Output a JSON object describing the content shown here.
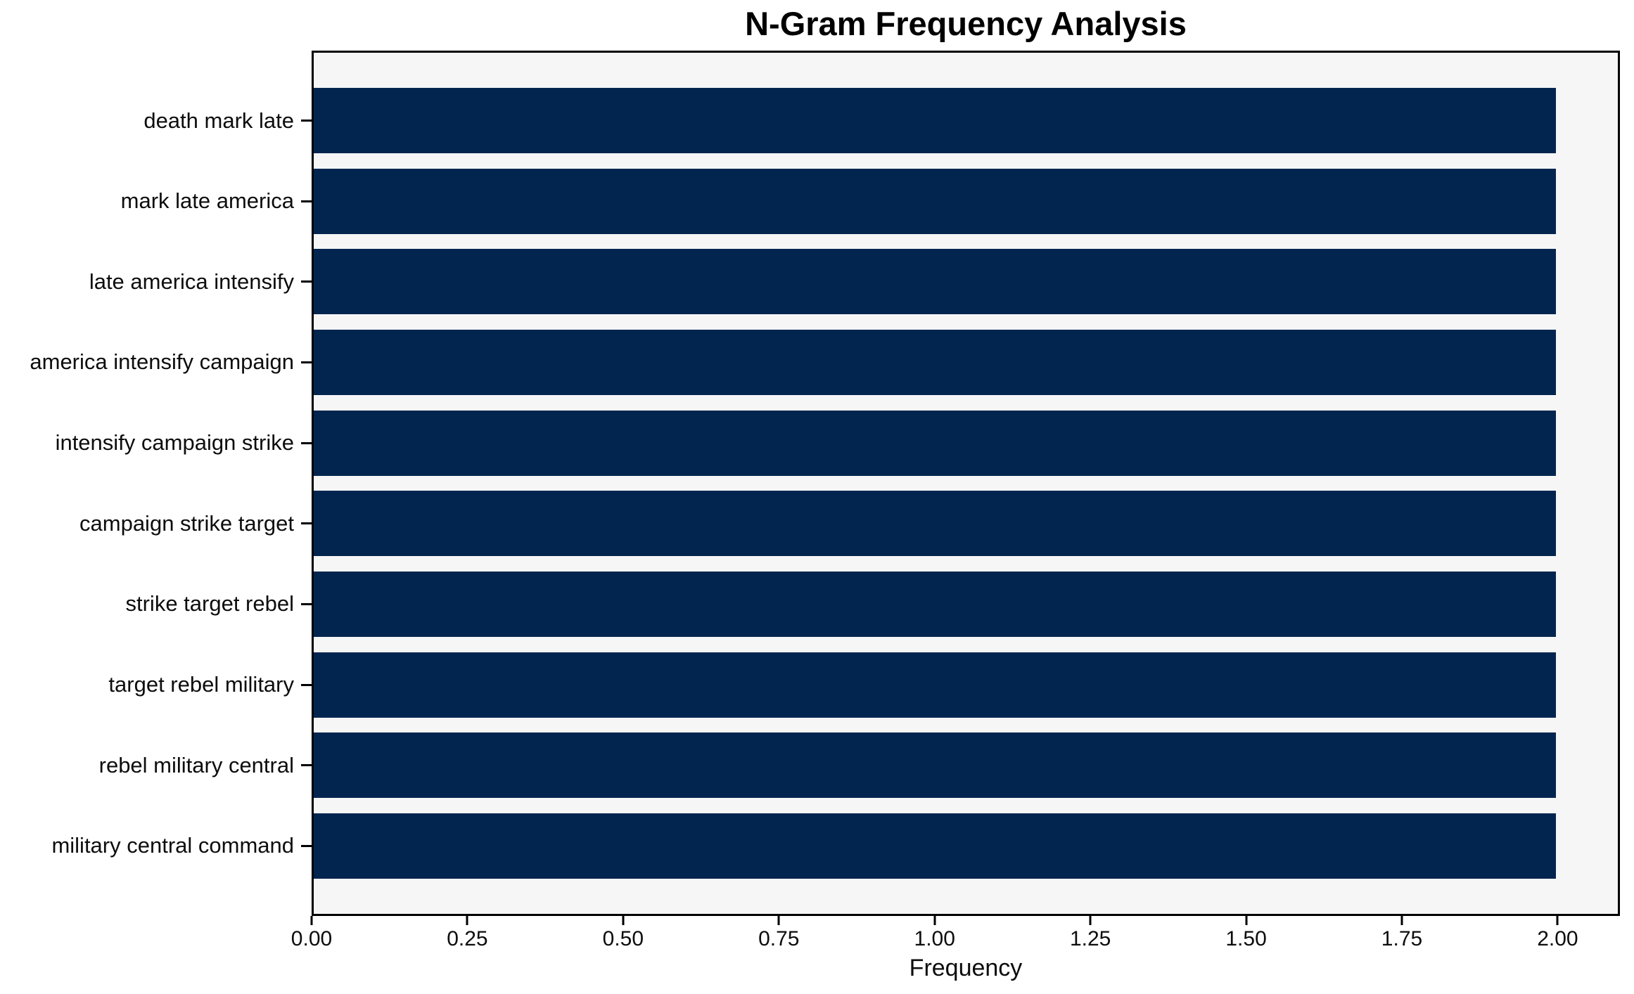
{
  "chart_data": {
    "type": "bar",
    "orientation": "horizontal",
    "title": "N-Gram Frequency Analysis",
    "xlabel": "Frequency",
    "ylabel": "",
    "categories": [
      "death mark late",
      "mark late america",
      "late america intensify",
      "america intensify campaign",
      "intensify campaign strike",
      "campaign strike target",
      "strike target rebel",
      "target rebel military",
      "rebel military central",
      "military central command"
    ],
    "values": [
      2,
      2,
      2,
      2,
      2,
      2,
      2,
      2,
      2,
      2
    ],
    "xticks": [
      "0.00",
      "0.25",
      "0.50",
      "0.75",
      "1.00",
      "1.25",
      "1.50",
      "1.75",
      "2.00"
    ],
    "xlim": [
      0,
      2.1
    ],
    "grid": false,
    "legend": "none",
    "bar_color": "#02254f",
    "plot_bg": "#f6f6f7",
    "spine_color": "#000000"
  }
}
